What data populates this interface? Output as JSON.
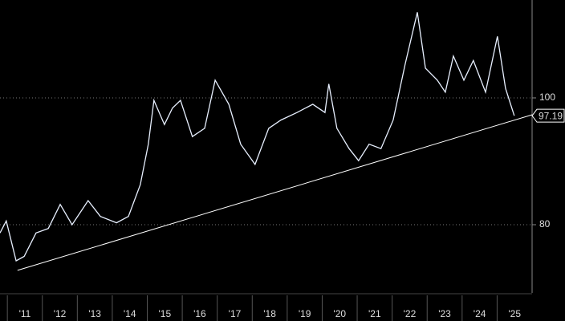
{
  "chart_data": {
    "type": "line",
    "x": [
      2010.79,
      2010.97,
      2011.25,
      2011.48,
      2011.82,
      2012.17,
      2012.51,
      2012.85,
      2013.31,
      2013.66,
      2014.12,
      2014.46,
      2014.8,
      2015.03,
      2015.19,
      2015.49,
      2015.72,
      2015.95,
      2016.29,
      2016.64,
      2016.94,
      2017.33,
      2017.67,
      2018.08,
      2018.47,
      2018.82,
      2019.28,
      2019.73,
      2020.08,
      2020.19,
      2020.42,
      2020.77,
      2021.04,
      2021.34,
      2021.68,
      2022.03,
      2022.37,
      2022.72,
      2022.95,
      2023.29,
      2023.52,
      2023.75,
      2024.05,
      2024.32,
      2024.67,
      2025.01,
      2025.24,
      2025.49
    ],
    "series": [
      {
        "color": "#e8f0ff",
        "values": [
          78.7,
          80.6,
          74.3,
          75,
          78.7,
          79.4,
          83.2,
          80,
          83.8,
          81.3,
          80.3,
          81.3,
          86.3,
          92.7,
          99.6,
          95.8,
          98.4,
          99.6,
          93.9,
          95.2,
          102.8,
          99,
          92.7,
          89.5,
          95.2,
          96.5,
          97.7,
          99,
          97.7,
          102.2,
          95.2,
          92,
          90.1,
          92.7,
          92,
          96.5,
          105.3,
          113.5,
          104.7,
          102.8,
          100.9,
          106.6,
          102.8,
          105.9,
          100.9,
          109.7,
          101.5,
          97.19
        ]
      }
    ],
    "trendline": {
      "color": "#ffffff",
      "x": [
        2011.29,
        2026.0
      ],
      "values": [
        72.8,
        97.34
      ]
    },
    "xlim": [
      2010.79,
      2026.0
    ],
    "xticks": [
      {
        "value": 2011,
        "label": "'11"
      },
      {
        "value": 2012,
        "label": "'12"
      },
      {
        "value": 2013,
        "label": "'13"
      },
      {
        "value": 2014,
        "label": "'14"
      },
      {
        "value": 2015,
        "label": "'15"
      },
      {
        "value": 2016,
        "label": "'16"
      },
      {
        "value": 2017,
        "label": "'17"
      },
      {
        "value": 2018,
        "label": "'18"
      },
      {
        "value": 2019,
        "label": "'19"
      },
      {
        "value": 2020,
        "label": "'20"
      },
      {
        "value": 2021,
        "label": "'21"
      },
      {
        "value": 2022,
        "label": "'22"
      },
      {
        "value": 2023,
        "label": "'23"
      },
      {
        "value": 2024,
        "label": "'24"
      },
      {
        "value": 2025,
        "label": "'25"
      }
    ],
    "ylim": [
      69.24,
      115.44
    ],
    "yticks": [
      80,
      100
    ],
    "grid": true
  }
}
